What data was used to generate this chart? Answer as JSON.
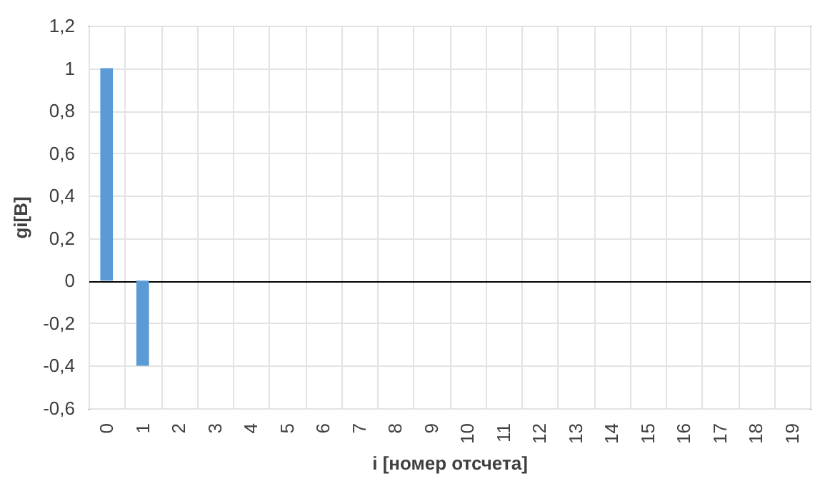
{
  "chart_data": {
    "type": "bar",
    "xlabel": "i [номер отсчета]",
    "ylabel": "gi[В]",
    "categories": [
      "0",
      "1",
      "2",
      "3",
      "4",
      "5",
      "6",
      "7",
      "8",
      "9",
      "10",
      "11",
      "12",
      "13",
      "14",
      "15",
      "16",
      "17",
      "18",
      "19"
    ],
    "values": [
      1,
      -0.4,
      0,
      0,
      0,
      0,
      0,
      0,
      0,
      0,
      0,
      0,
      0,
      0,
      0,
      0,
      0,
      0,
      0,
      0
    ],
    "color": "#5b9bd5",
    "ylim": [
      -0.6,
      1.2
    ],
    "yticks": [
      {
        "value": -0.6,
        "label": "-0,6"
      },
      {
        "value": -0.4,
        "label": "-0,4"
      },
      {
        "value": -0.2,
        "label": "-0,2"
      },
      0,
      {
        "value": 0.2,
        "label": "0,2"
      },
      {
        "value": 0.4,
        "label": "0,4"
      },
      {
        "value": 0.6,
        "label": "0,6"
      },
      {
        "value": 0.8,
        "label": "0,8"
      },
      1,
      {
        "value": 1.2,
        "label": "1,2"
      }
    ],
    "grid": true
  }
}
